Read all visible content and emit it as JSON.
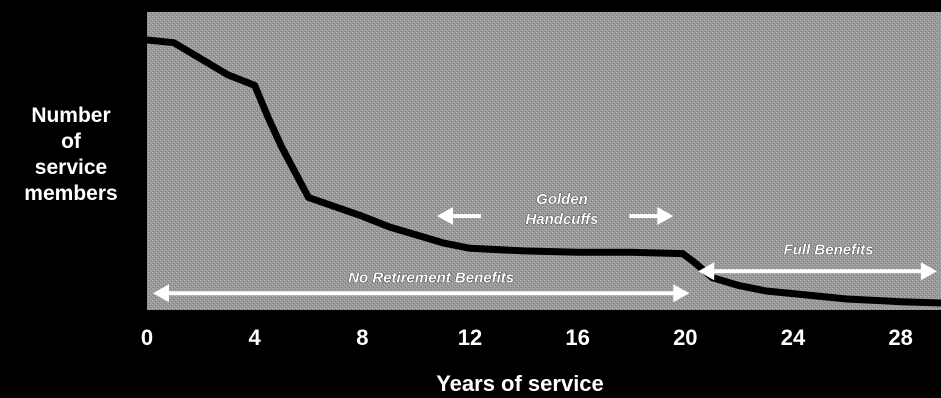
{
  "chart_data": {
    "type": "line",
    "ylabel": [
      "Number",
      "of",
      "service",
      "members"
    ],
    "xlabel": "Years of service",
    "x_ticks": [
      0,
      4,
      8,
      12,
      16,
      20,
      24,
      28
    ],
    "xlim": [
      0,
      29.5
    ],
    "ylim": [
      0,
      100
    ],
    "background": "#9a9a9a",
    "line_color": "#000000",
    "arrow_color": "#ffffff",
    "series": [
      {
        "x": [
          0,
          1,
          2,
          3,
          4,
          4.5,
          5,
          6,
          8,
          9,
          10,
          11,
          12,
          14,
          16,
          18,
          19.9,
          20.3,
          21,
          22,
          23,
          24,
          26,
          28,
          29.5
        ],
        "values": [
          100,
          99,
          93,
          87,
          83,
          71,
          60,
          41,
          34,
          30,
          27,
          24,
          22,
          21,
          20.5,
          20.5,
          20,
          17,
          11,
          8,
          6,
          5,
          3,
          2,
          1.5
        ]
      }
    ],
    "annotations": [
      {
        "id": "no-ret",
        "text": "No Retirement Benefits",
        "x_from": 0,
        "x_to": 20,
        "y": 10
      },
      {
        "id": "golden",
        "text": [
          "Golden",
          "Handcuffs"
        ],
        "x_from": 11,
        "x_to": 20
      },
      {
        "id": "full",
        "text": "Full Benefits",
        "x_from": 21,
        "x_to": 29.5,
        "y": 22
      }
    ]
  }
}
